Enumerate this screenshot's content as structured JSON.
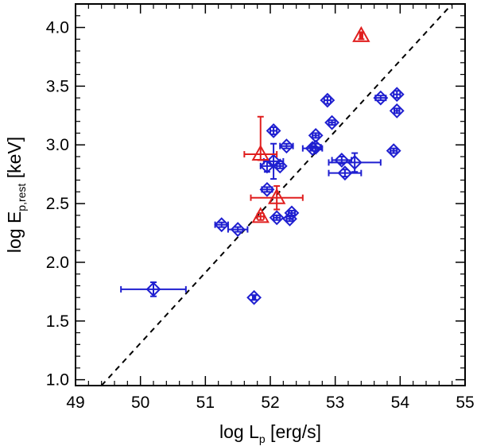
{
  "chart_data": {
    "type": "scatter",
    "xlabel": {
      "main": "log L",
      "sub": "p",
      "unit": " [erg/s]"
    },
    "ylabel": {
      "main": "log E",
      "sub": "p,rest",
      "unit": " [keV]"
    },
    "xlim": [
      49,
      55
    ],
    "ylim": [
      0.95,
      4.2
    ],
    "xticks": [
      49,
      50,
      51,
      52,
      53,
      54,
      55
    ],
    "xtick_labels": [
      "49",
      "50",
      "51",
      "52",
      "53",
      "54",
      "55"
    ],
    "yticks": [
      1.0,
      1.5,
      2.0,
      2.5,
      3.0,
      3.5,
      4.0
    ],
    "ytick_labels": [
      "1.0",
      "1.5",
      "2.0",
      "2.5",
      "3.0",
      "3.5",
      "4.0"
    ],
    "reference_line": {
      "style": "dashed",
      "color": "#000000",
      "points": [
        [
          49.4,
          0.95
        ],
        [
          54.8,
          4.2
        ]
      ]
    },
    "colors": {
      "blue": "#1f1fd0",
      "red": "#e01f1f"
    },
    "series": [
      {
        "name": "blue diamonds",
        "marker": "diamond",
        "color": "#1f1fd0",
        "points": [
          {
            "x": 50.2,
            "y": 1.77,
            "xerr": 0.5,
            "yerr": 0.06
          },
          {
            "x": 51.75,
            "y": 1.7,
            "xerr": 0.02,
            "yerr": 0.02
          },
          {
            "x": 51.25,
            "y": 2.32,
            "xerr": 0.1,
            "yerr": 0.02
          },
          {
            "x": 51.5,
            "y": 2.28,
            "xerr": 0.15,
            "yerr": 0.02
          },
          {
            "x": 51.95,
            "y": 2.62,
            "xerr": 0.08,
            "yerr": 0.02
          },
          {
            "x": 52.1,
            "y": 2.38,
            "xerr": 0.05,
            "yerr": 0.02
          },
          {
            "x": 52.3,
            "y": 2.37,
            "xerr": 0.05,
            "yerr": 0.02
          },
          {
            "x": 52.33,
            "y": 2.42,
            "xerr": 0.05,
            "yerr": 0.02
          },
          {
            "x": 51.95,
            "y": 2.82,
            "xerr": 0.1,
            "yerr": 0.05
          },
          {
            "x": 52.05,
            "y": 2.86,
            "xerr": 0.15,
            "yerr": 0.15
          },
          {
            "x": 52.15,
            "y": 2.82,
            "xerr": 0.05,
            "yerr": 0.02
          },
          {
            "x": 52.05,
            "y": 3.12,
            "xerr": 0.05,
            "yerr": 0.03
          },
          {
            "x": 52.25,
            "y": 2.99,
            "xerr": 0.1,
            "yerr": 0.02
          },
          {
            "x": 52.65,
            "y": 2.97,
            "xerr": 0.15,
            "yerr": 0.02
          },
          {
            "x": 52.7,
            "y": 2.98,
            "xerr": 0.08,
            "yerr": 0.03
          },
          {
            "x": 52.7,
            "y": 3.08,
            "xerr": 0.05,
            "yerr": 0.02
          },
          {
            "x": 52.95,
            "y": 3.19,
            "xerr": 0.05,
            "yerr": 0.02
          },
          {
            "x": 52.88,
            "y": 3.38,
            "xerr": 0.05,
            "yerr": 0.03
          },
          {
            "x": 53.1,
            "y": 2.87,
            "xerr": 0.15,
            "yerr": 0.03
          },
          {
            "x": 53.15,
            "y": 2.76,
            "xerr": 0.25,
            "yerr": 0.03
          },
          {
            "x": 53.3,
            "y": 2.85,
            "xerr": 0.4,
            "yerr": 0.08
          },
          {
            "x": 53.7,
            "y": 3.4,
            "xerr": 0.08,
            "yerr": 0.02
          },
          {
            "x": 53.95,
            "y": 3.43,
            "xerr": 0.05,
            "yerr": 0.03
          },
          {
            "x": 53.95,
            "y": 3.29,
            "xerr": 0.04,
            "yerr": 0.02
          },
          {
            "x": 53.9,
            "y": 2.95,
            "xerr": 0.05,
            "yerr": 0.02
          }
        ]
      },
      {
        "name": "red triangles",
        "marker": "triangle",
        "color": "#e01f1f",
        "points": [
          {
            "x": 53.4,
            "y": 3.93,
            "xerr": 0.02,
            "yerr": 0.03
          },
          {
            "x": 51.85,
            "y": 2.92,
            "xerr": 0.25,
            "yerr": 0.32,
            "yerr_low": 0.05
          },
          {
            "x": 52.1,
            "y": 2.55,
            "xerr": 0.4,
            "yerr": 0.1
          },
          {
            "x": 51.85,
            "y": 2.39,
            "xerr": 0.05,
            "yerr": 0.03
          }
        ]
      }
    ]
  }
}
